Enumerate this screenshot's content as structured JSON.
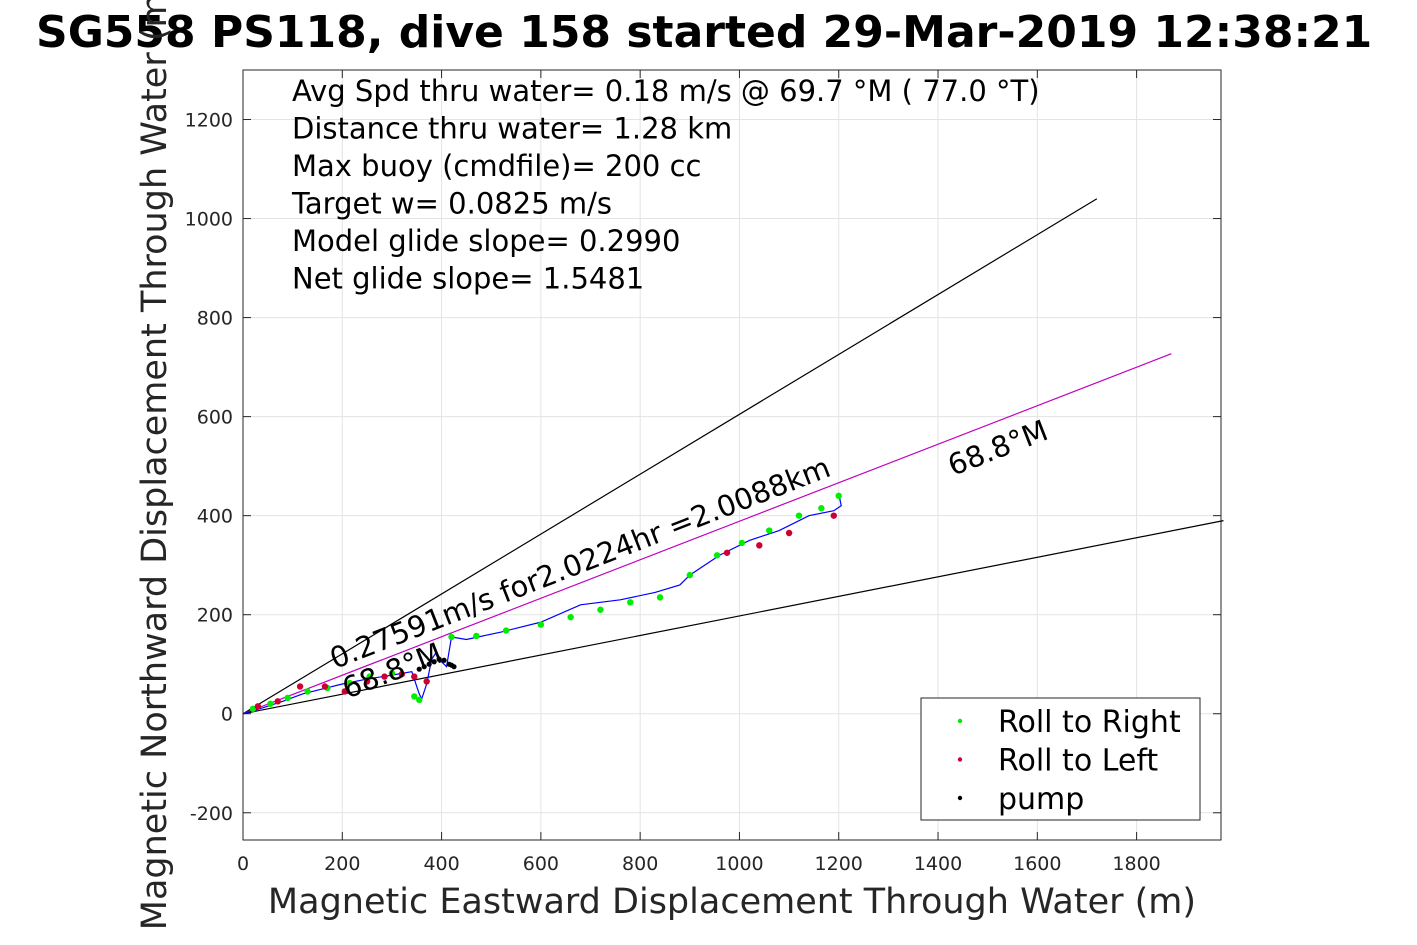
{
  "chart_data": {
    "type": "line",
    "title": "SG558 PS118, dive 158 started 29-Mar-2019 12:38:21",
    "xlabel": "Magnetic Eastward Displacement Through Water (m)",
    "ylabel": "Magnetic Northward Displacement Through Water (m)",
    "xlim": [
      0,
      1970
    ],
    "ylim": [
      -255,
      1300
    ],
    "xticks": [
      0,
      200,
      400,
      600,
      800,
      1000,
      1200,
      1400,
      1600,
      1800
    ],
    "yticks": [
      -200,
      0,
      200,
      400,
      600,
      800,
      1000,
      1200
    ],
    "grid": true,
    "stats": [
      "Avg Spd thru water=  0.18 m/s @  69.7 °M ( 77.0 °T)",
      "Distance thru water=  1.28 km",
      "Max buoy (cmdfile)= 200 cc",
      "Target w= 0.0825 m/s",
      "Model glide slope= 0.2990",
      "Net glide slope= 1.5481"
    ],
    "reference_lines": [
      {
        "x": [
          0,
          1720
        ],
        "y": [
          0,
          1040
        ],
        "color": "#000000"
      },
      {
        "x": [
          0,
          1975
        ],
        "y": [
          0,
          390
        ],
        "color": "#000000"
      },
      {
        "x": [
          0,
          1870
        ],
        "y": [
          0,
          727
        ],
        "color": "#c000c0"
      }
    ],
    "annotations": [
      {
        "text": "68.8°M",
        "x": 1430,
        "y": 480,
        "angle": 21.3
      },
      {
        "text": "0.27591m/s for2.0224hr =2.0088km",
        "x": 185,
        "y": 90,
        "angle": 21.3
      },
      {
        "text": "68.8°M",
        "x": 210,
        "y": 30,
        "angle": 21.3
      }
    ],
    "track": {
      "name": "track",
      "color": "#0000ff",
      "x": [
        0,
        40,
        80,
        120,
        160,
        200,
        250,
        300,
        340,
        355,
        360,
        370,
        380,
        390,
        400,
        410,
        420,
        450,
        520,
        600,
        680,
        760,
        830,
        880,
        900,
        960,
        1020,
        1080,
        1140,
        1190,
        1205,
        1200
      ],
      "y": [
        0,
        12,
        25,
        40,
        50,
        60,
        70,
        78,
        85,
        40,
        30,
        60,
        110,
        125,
        105,
        95,
        155,
        150,
        165,
        185,
        220,
        230,
        245,
        260,
        280,
        320,
        350,
        370,
        400,
        410,
        420,
        445
      ]
    },
    "roll_right": {
      "name": "Roll to Right",
      "color": "#00ee00",
      "x": [
        20,
        55,
        90,
        130,
        170,
        215,
        255,
        300,
        345,
        355,
        420,
        470,
        530,
        600,
        660,
        720,
        780,
        840,
        900,
        955,
        1005,
        1060,
        1120,
        1165,
        1200
      ],
      "y": [
        10,
        20,
        32,
        45,
        52,
        62,
        75,
        82,
        35,
        28,
        155,
        157,
        168,
        180,
        195,
        210,
        225,
        235,
        280,
        320,
        345,
        370,
        400,
        415,
        440
      ]
    },
    "roll_left": {
      "name": "Roll to Left",
      "color": "#cc0033",
      "x": [
        30,
        70,
        115,
        165,
        205,
        250,
        285,
        320,
        345,
        370,
        975,
        1040,
        1100,
        1190
      ],
      "y": [
        15,
        25,
        55,
        55,
        45,
        65,
        75,
        80,
        75,
        65,
        325,
        340,
        365,
        400
      ]
    },
    "pump": {
      "name": "pump",
      "color": "#000000",
      "x": [
        355,
        365,
        375,
        385,
        395,
        405,
        415,
        420,
        425
      ],
      "y": [
        90,
        95,
        100,
        105,
        110,
        108,
        100,
        98,
        95
      ]
    },
    "legend": {
      "position": "bottom-right",
      "entries": [
        "Roll to Right",
        "Roll to Left",
        "pump"
      ]
    }
  }
}
